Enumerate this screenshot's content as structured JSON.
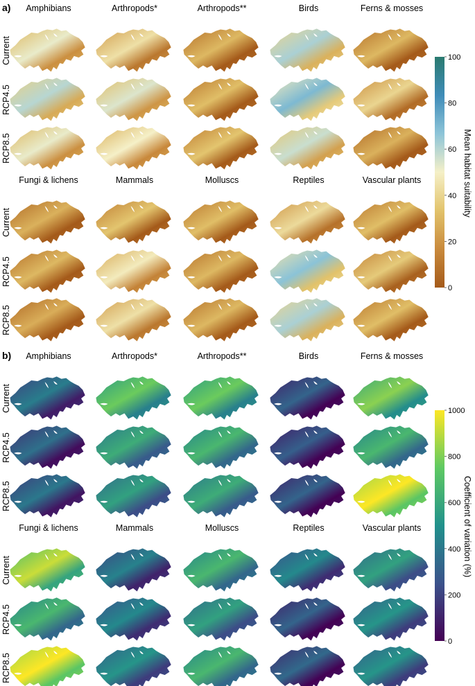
{
  "panels": [
    {
      "letter": "a)",
      "blocks": [
        {
          "taxa": [
            "Amphibians",
            "Arthropods*",
            "Arthropods**",
            "Birds",
            "Ferns & mosses"
          ],
          "scenarios": [
            "Current",
            "RCP4.5",
            "RCP8.5"
          ],
          "suitability": [
            [
              0.3,
              0.22,
              0.08,
              0.4,
              0.08
            ],
            [
              0.38,
              0.32,
              0.1,
              0.48,
              0.18
            ],
            [
              0.3,
              0.28,
              0.12,
              0.35,
              0.06
            ]
          ]
        },
        {
          "taxa": [
            "Fungi & lichens",
            "Mammals",
            "Molluscs",
            "Reptiles",
            "Vascular plants"
          ],
          "scenarios": [
            "Current",
            "RCP4.5",
            "RCP8.5"
          ],
          "suitability": [
            [
              0.06,
              0.12,
              0.1,
              0.2,
              0.1
            ],
            [
              0.08,
              0.26,
              0.08,
              0.45,
              0.14
            ],
            [
              0.05,
              0.22,
              0.08,
              0.4,
              0.1
            ]
          ]
        }
      ],
      "colorbar": {
        "title": "Mean habitat suitability",
        "ticks": [
          "0",
          "20",
          "40",
          "60",
          "80",
          "100"
        ],
        "min": 0,
        "max": 100,
        "colors": [
          "#a45a1a",
          "#c98a3c",
          "#e2c36b",
          "#f5f0c8",
          "#8dc4d8",
          "#3f8cb8",
          "#2a7a6f"
        ]
      }
    },
    {
      "letter": "b)",
      "blocks": [
        {
          "taxa": [
            "Amphibians",
            "Arthropods*",
            "Arthropods**",
            "Birds",
            "Ferns & mosses"
          ],
          "scenarios": [
            "Current",
            "RCP4.5",
            "RCP8.5"
          ],
          "variation": [
            [
              0.2,
              0.55,
              0.55,
              0.1,
              0.6
            ],
            [
              0.15,
              0.4,
              0.45,
              0.08,
              0.45
            ],
            [
              0.18,
              0.35,
              0.4,
              0.1,
              0.85
            ]
          ]
        },
        {
          "taxa": [
            "Fungi & lichens",
            "Mammals",
            "Molluscs",
            "Reptiles",
            "Vascular plants"
          ],
          "scenarios": [
            "Current",
            "RCP4.5",
            "RCP8.5"
          ],
          "variation": [
            [
              0.7,
              0.22,
              0.45,
              0.25,
              0.35
            ],
            [
              0.45,
              0.25,
              0.35,
              0.1,
              0.3
            ],
            [
              0.85,
              0.3,
              0.45,
              0.12,
              0.3
            ]
          ]
        }
      ],
      "colorbar": {
        "title": "Coefficient of variation (%)",
        "ticks": [
          "0",
          "200",
          "400",
          "600",
          "800",
          "1000"
        ],
        "min": 0,
        "max": 1000,
        "colors": [
          "#440154",
          "#3b528b",
          "#21918c",
          "#5ec962",
          "#fde725"
        ]
      }
    }
  ],
  "chart_data": [
    {
      "type": "heatmap",
      "title": "a)",
      "colorbar_label": "Mean habitat suitability",
      "colorbar_range": [
        0,
        100
      ],
      "columns_top": [
        "Amphibians",
        "Arthropods*",
        "Arthropods**",
        "Birds",
        "Ferns & mosses"
      ],
      "columns_bottom": [
        "Fungi & lichens",
        "Mammals",
        "Molluscs",
        "Reptiles",
        "Vascular plants"
      ],
      "rows": [
        "Current",
        "RCP4.5",
        "RCP8.5"
      ]
    },
    {
      "type": "heatmap",
      "title": "b)",
      "colorbar_label": "Coefficient of variation (%)",
      "colorbar_range": [
        0,
        1000
      ],
      "columns_top": [
        "Amphibians",
        "Arthropods*",
        "Arthropods**",
        "Birds",
        "Ferns & mosses"
      ],
      "columns_bottom": [
        "Fungi & lichens",
        "Mammals",
        "Molluscs",
        "Reptiles",
        "Vascular plants"
      ],
      "rows": [
        "Current",
        "RCP4.5",
        "RCP8.5"
      ]
    }
  ]
}
